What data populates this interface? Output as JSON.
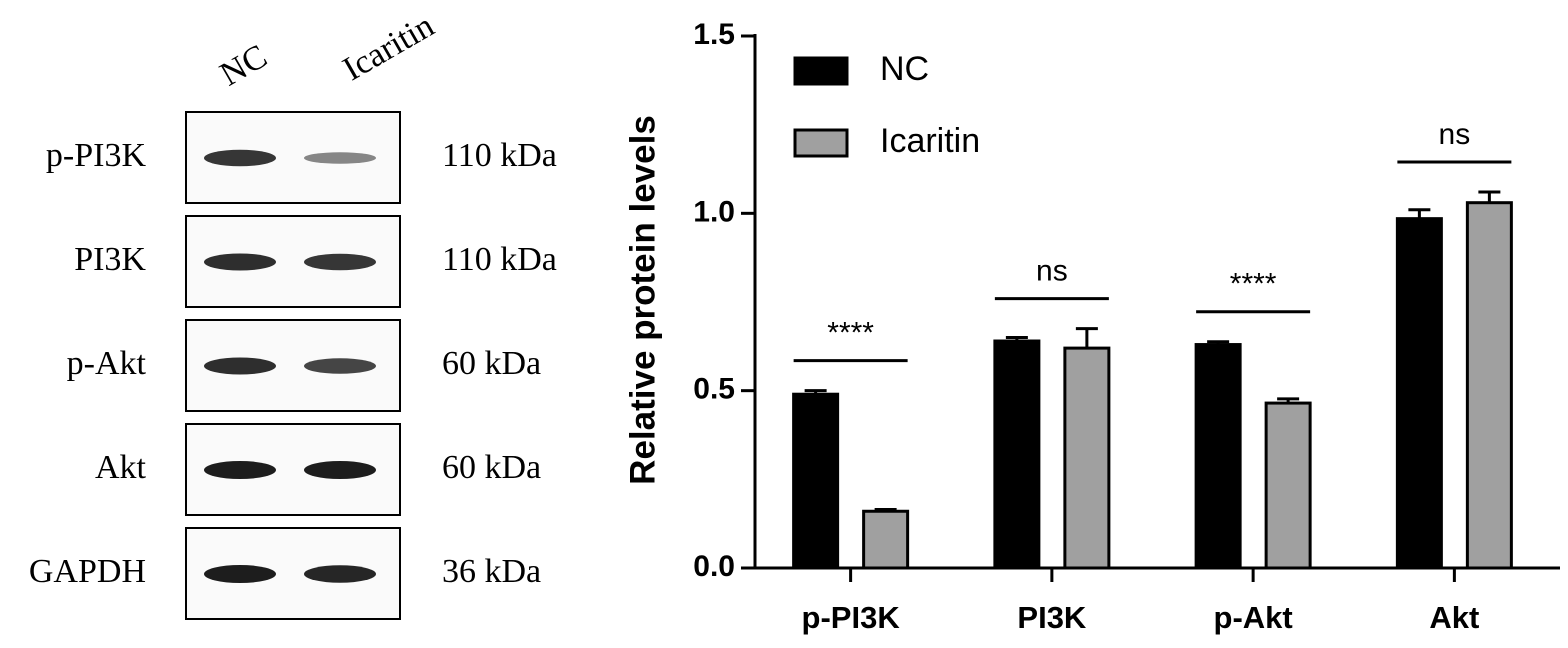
{
  "blot": {
    "lanes": [
      "NC",
      "Icaritin"
    ],
    "rows": [
      {
        "protein": "p-PI3K",
        "size": "110 kDa"
      },
      {
        "protein": "PI3K",
        "size": "110 kDa"
      },
      {
        "protein": "p-Akt",
        "size": "60 kDa"
      },
      {
        "protein": "Akt",
        "size": "60 kDa"
      },
      {
        "protein": "GAPDH",
        "size": "36 kDa"
      }
    ]
  },
  "chart_data": {
    "type": "bar",
    "ylabel": "Relative protein levels",
    "categories": [
      "p-PI3K",
      "PI3K",
      "p-Akt",
      "Akt"
    ],
    "series": [
      {
        "name": "NC",
        "color": "#000000",
        "values": [
          0.49,
          0.64,
          0.63,
          0.985
        ],
        "errors": [
          0.01,
          0.01,
          0.008,
          0.025
        ]
      },
      {
        "name": "Icaritin",
        "color": "#a0a0a0",
        "values": [
          0.16,
          0.62,
          0.465,
          1.03
        ],
        "errors": [
          0.005,
          0.055,
          0.012,
          0.03
        ]
      }
    ],
    "significance": [
      "****",
      "ns",
      "****",
      "ns"
    ],
    "ylim": [
      0,
      1.5
    ],
    "yticks": [
      {
        "value": 0,
        "label": "0.0"
      },
      0.5,
      {
        "value": 1,
        "label": "1.0"
      },
      1.5
    ],
    "legend": "upper left"
  }
}
